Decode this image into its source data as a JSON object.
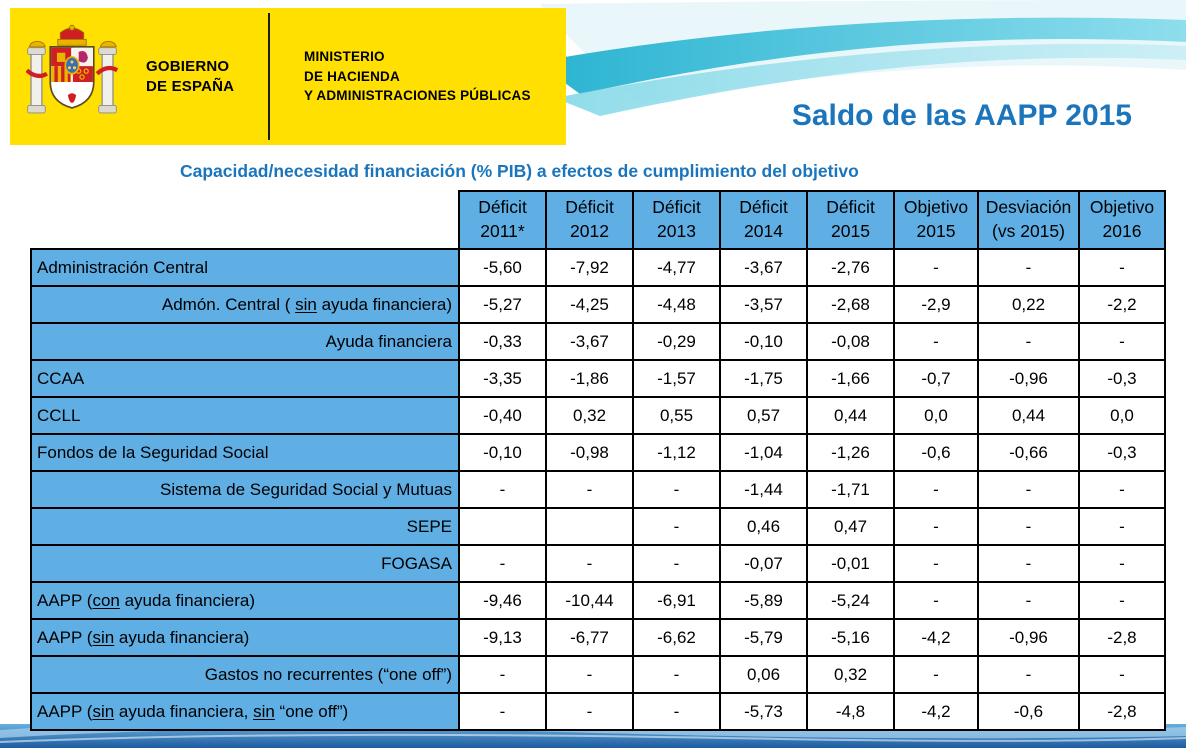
{
  "banner": {
    "government_line1": "GOBIERNO",
    "government_line2": "DE ESPAÑA",
    "ministry_line1": "MINISTERIO",
    "ministry_line2": "DE HACIENDA",
    "ministry_line3": "Y ADMINISTRACIONES PÚBLICAS"
  },
  "title": "Saldo de las AAPP 2015",
  "subtitle": "Capacidad/necesidad financiación (% PIB) a efectos de cumplimiento del objetivo",
  "colors": {
    "banner_yellow": "#FFE000",
    "title_blue": "#1B75BC",
    "table_cell_blue": "#5FAEE4",
    "swoosh_teal": "#29B3D1",
    "bottom_bar_blue": "#1C5A9E",
    "coat_red": "#CF1F25",
    "coat_gold": "#E8B400"
  },
  "icons": {
    "coat_of_arms": "spain-coat-of-arms"
  },
  "table": {
    "headers": [
      {
        "line1": "Déficit",
        "line2": "2011*"
      },
      {
        "line1": "Déficit",
        "line2": "2012"
      },
      {
        "line1": "Déficit",
        "line2": "2013"
      },
      {
        "line1": "Déficit",
        "line2": "2014"
      },
      {
        "line1": "Déficit",
        "line2": "2015"
      },
      {
        "line1": "Objetivo",
        "line2": "2015"
      },
      {
        "line1": "Desviación",
        "line2": "(vs 2015)"
      },
      {
        "line1": "Objetivo",
        "line2": "2016"
      }
    ],
    "rows": [
      {
        "align": "left",
        "label_parts": [
          {
            "t": "Administración Central"
          }
        ],
        "values": [
          "-5,60",
          "-7,92",
          "-4,77",
          "-3,67",
          "-2,76",
          "-",
          "-",
          "-"
        ]
      },
      {
        "align": "right",
        "label_parts": [
          {
            "t": "Admón. Central ( "
          },
          {
            "t": "sin",
            "u": true
          },
          {
            "t": " ayuda financiera)"
          }
        ],
        "values": [
          "-5,27",
          "-4,25",
          "-4,48",
          "-3,57",
          "-2,68",
          "-2,9",
          "0,22",
          "-2,2"
        ]
      },
      {
        "align": "right",
        "label_parts": [
          {
            "t": "Ayuda financiera"
          }
        ],
        "values": [
          "-0,33",
          "-3,67",
          "-0,29",
          "-0,10",
          "-0,08",
          "-",
          "-",
          "-"
        ]
      },
      {
        "align": "left",
        "label_parts": [
          {
            "t": "CCAA"
          }
        ],
        "values": [
          "-3,35",
          "-1,86",
          "-1,57",
          "-1,75",
          "-1,66",
          "-0,7",
          "-0,96",
          "-0,3"
        ]
      },
      {
        "align": "left",
        "label_parts": [
          {
            "t": "CCLL"
          }
        ],
        "values": [
          "-0,40",
          "0,32",
          "0,55",
          "0,57",
          "0,44",
          "0,0",
          "0,44",
          "0,0"
        ]
      },
      {
        "align": "left",
        "label_parts": [
          {
            "t": "Fondos de la Seguridad Social"
          }
        ],
        "values": [
          "-0,10",
          "-0,98",
          "-1,12",
          "-1,04",
          "-1,26",
          "-0,6",
          "-0,66",
          "-0,3"
        ]
      },
      {
        "align": "right",
        "label_parts": [
          {
            "t": "Sistema de Seguridad Social y Mutuas"
          }
        ],
        "values": [
          "-",
          "-",
          "-",
          "-1,44",
          "-1,71",
          "-",
          "-",
          "-"
        ]
      },
      {
        "align": "right",
        "label_parts": [
          {
            "t": "SEPE"
          }
        ],
        "values": [
          "",
          "",
          "-",
          "0,46",
          "0,47",
          "-",
          "-",
          "-"
        ]
      },
      {
        "align": "right",
        "label_parts": [
          {
            "t": "FOGASA"
          }
        ],
        "values": [
          "-",
          "-",
          "-",
          "-0,07",
          "-0,01",
          "-",
          "-",
          "-"
        ]
      },
      {
        "align": "left",
        "label_parts": [
          {
            "t": "AAPP ("
          },
          {
            "t": "con",
            "u": true
          },
          {
            "t": " ayuda financiera)"
          }
        ],
        "values": [
          "-9,46",
          "-10,44",
          "-6,91",
          "-5,89",
          "-5,24",
          "-",
          "-",
          "-"
        ]
      },
      {
        "align": "left",
        "label_parts": [
          {
            "t": "AAPP ("
          },
          {
            "t": "sin",
            "u": true
          },
          {
            "t": " ayuda financiera)"
          }
        ],
        "values": [
          "-9,13",
          "-6,77",
          "-6,62",
          "-5,79",
          "-5,16",
          "-4,2",
          "-0,96",
          "-2,8"
        ]
      },
      {
        "align": "right",
        "label_parts": [
          {
            "t": "Gastos no recurrentes (“one off”)"
          }
        ],
        "values": [
          "-",
          "-",
          "-",
          "0,06",
          "0,32",
          "-",
          "-",
          "-"
        ]
      },
      {
        "align": "left",
        "label_parts": [
          {
            "t": "AAPP ("
          },
          {
            "t": "sin",
            "u": true
          },
          {
            "t": " ayuda financiera, "
          },
          {
            "t": "sin",
            "u": true
          },
          {
            "t": " “one off”)"
          }
        ],
        "values": [
          "-",
          "-",
          "-",
          "-5,73",
          "-4,8",
          "-4,2",
          "-0,6",
          "-2,8"
        ]
      }
    ]
  }
}
